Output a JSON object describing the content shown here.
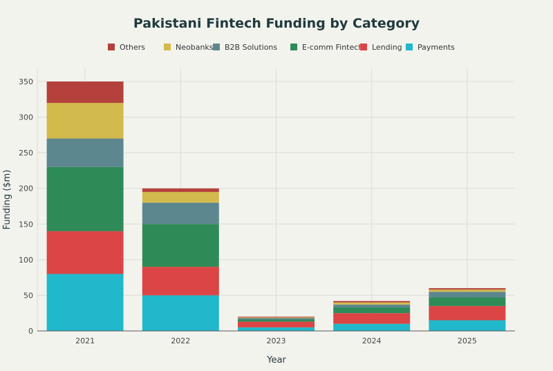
{
  "chart_data": {
    "type": "bar",
    "stacked": true,
    "title": "Pakistani Fintech Funding by Category",
    "xlabel": "Year",
    "ylabel": "Funding ($m)",
    "categories": [
      "2021",
      "2022",
      "2023",
      "2024",
      "2025"
    ],
    "ylim": [
      0,
      350
    ],
    "yticks": [
      0,
      50,
      100,
      150,
      200,
      250,
      300,
      350
    ],
    "grid": true,
    "legend_position": "top",
    "series": [
      {
        "name": "Payments",
        "color": "#21b8cc",
        "values": [
          80,
          50,
          5,
          10,
          15
        ]
      },
      {
        "name": "Lending",
        "color": "#db4545",
        "values": [
          60,
          40,
          8,
          15,
          20
        ]
      },
      {
        "name": "E-comm Fintech",
        "color": "#2e8b57",
        "values": [
          90,
          60,
          3,
          8,
          12
        ]
      },
      {
        "name": "B2B Solutions",
        "color": "#5d878f",
        "values": [
          40,
          30,
          2,
          4,
          8
        ]
      },
      {
        "name": "Neobanks",
        "color": "#d2ba4c",
        "values": [
          50,
          15,
          1,
          3,
          3
        ]
      },
      {
        "name": "Others",
        "color": "#b4413c",
        "values": [
          30,
          5,
          1,
          2,
          2
        ]
      }
    ],
    "legend_order": [
      "Others",
      "Neobanks",
      "B2B Solutions",
      "E-comm Fintech",
      "Lending",
      "Payments"
    ]
  }
}
